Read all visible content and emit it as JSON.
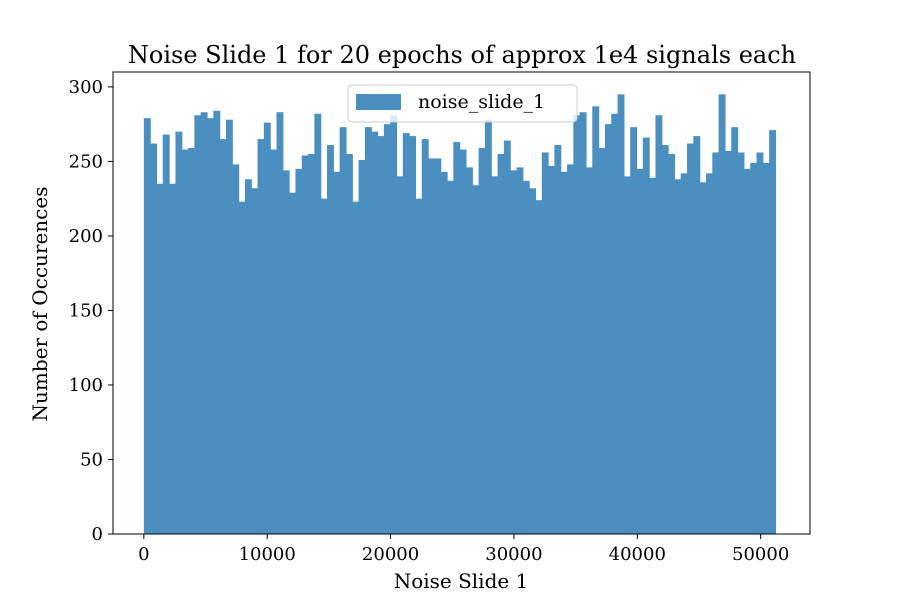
{
  "chart_data": {
    "type": "bar",
    "title": "Noise Slide 1 for 20 epochs of approx 1e4 signals each",
    "xlabel": "Noise Slide 1",
    "ylabel": "Number of Occurences",
    "xlim": [
      -2500,
      54000
    ],
    "ylim": [
      0,
      310
    ],
    "xticks": [
      0,
      10000,
      20000,
      30000,
      40000,
      50000
    ],
    "xtick_labels": [
      "0",
      "10000",
      "20000",
      "30000",
      "40000",
      "50000"
    ],
    "yticks": [
      0,
      50,
      100,
      150,
      200,
      250,
      300
    ],
    "ytick_labels": [
      "0",
      "50",
      "100",
      "150",
      "200",
      "250",
      "300"
    ],
    "legend_position": "upper center",
    "bin_start": 0,
    "bin_end": 51200,
    "series": [
      {
        "name": "noise_slide_1",
        "color": "#4b8fc1",
        "values": [
          279,
          262,
          235,
          268,
          235,
          270,
          258,
          259,
          281,
          283,
          279,
          284,
          265,
          278,
          248,
          223,
          238,
          232,
          265,
          276,
          258,
          283,
          244,
          229,
          245,
          254,
          255,
          282,
          225,
          261,
          243,
          273,
          255,
          223,
          251,
          273,
          270,
          267,
          275,
          281,
          240,
          269,
          267,
          225,
          265,
          252,
          252,
          243,
          237,
          263,
          258,
          246,
          234,
          259,
          278,
          240,
          255,
          264,
          244,
          246,
          237,
          232,
          224,
          256,
          247,
          261,
          243,
          248,
          281,
          283,
          246,
          287,
          259,
          275,
          282,
          295,
          240,
          273,
          245,
          266,
          239,
          281,
          261,
          255,
          238,
          242,
          262,
          267,
          236,
          242,
          256,
          295,
          257,
          273,
          256,
          245,
          249,
          256,
          249,
          271
        ]
      }
    ]
  }
}
